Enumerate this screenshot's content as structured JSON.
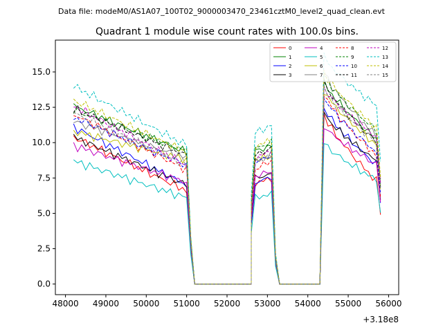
{
  "header": {
    "data_file": "Data file: modeM0/AS1A07_100T02_9000003470_23461cztM0_level2_quad_clean.evt"
  },
  "chart_data": {
    "type": "line",
    "title": "Quadrant 1 module wise count rates with 100.0s bins.",
    "xlabel": "",
    "ylabel": "",
    "x_offset_label": "+3.18e8",
    "xlim": [
      47750,
      56250
    ],
    "ylim": [
      -0.75,
      17.25
    ],
    "x_ticks": [
      48000,
      49000,
      50000,
      51000,
      52000,
      53000,
      54000,
      55000,
      56000
    ],
    "x_tick_labels": [
      "48000",
      "49000",
      "50000",
      "51000",
      "52000",
      "53000",
      "54000",
      "55000",
      "56000"
    ],
    "y_ticks": [
      0,
      2.5,
      5,
      7.5,
      10,
      12.5,
      15
    ],
    "y_tick_labels": [
      "0.0",
      "2.5",
      "5.0",
      "7.5",
      "10.0",
      "12.5",
      "15.0"
    ],
    "legend_position": "top-right",
    "segments": [
      {
        "start": 48200,
        "end": 51000,
        "kind": "active"
      },
      {
        "start": 51000,
        "end": 51200,
        "kind": "drop"
      },
      {
        "start": 51200,
        "end": 52600,
        "kind": "zero"
      },
      {
        "start": 52600,
        "end": 53100,
        "kind": "active"
      },
      {
        "start": 53100,
        "end": 53300,
        "kind": "drop"
      },
      {
        "start": 53300,
        "end": 54300,
        "kind": "zero"
      },
      {
        "start": 54300,
        "end": 55800,
        "kind": "active"
      }
    ],
    "series": [
      {
        "name": "0",
        "color": "#ff0000",
        "dashed": false,
        "seg1": [
          10.4,
          6.6
        ],
        "seg2": [
          7.0,
          7.5
        ],
        "seg3": [
          12.0,
          7.0
        ]
      },
      {
        "name": "1",
        "color": "#008000",
        "dashed": false,
        "seg1": [
          12.6,
          9.3
        ],
        "seg2": [
          9.3,
          9.8
        ],
        "seg3": [
          14.3,
          10.0
        ]
      },
      {
        "name": "2",
        "color": "#0000ff",
        "dashed": false,
        "seg1": [
          11.1,
          7.0
        ],
        "seg2": [
          7.0,
          7.6
        ],
        "seg3": [
          12.5,
          8.2
        ]
      },
      {
        "name": "3",
        "color": "#000000",
        "dashed": false,
        "seg1": [
          10.4,
          7.0
        ],
        "seg2": [
          7.4,
          7.8
        ],
        "seg3": [
          12.1,
          8.5
        ]
      },
      {
        "name": "4",
        "color": "#bf00bf",
        "dashed": false,
        "seg1": [
          9.8,
          7.2
        ],
        "seg2": [
          7.5,
          8.0
        ],
        "seg3": [
          11.2,
          8.3
        ]
      },
      {
        "name": "5",
        "color": "#00bfbf",
        "dashed": false,
        "seg1": [
          8.7,
          6.1
        ],
        "seg2": [
          6.0,
          6.4
        ],
        "seg3": [
          10.0,
          7.2
        ]
      },
      {
        "name": "6",
        "color": "#bfbf00",
        "dashed": false,
        "seg1": [
          10.8,
          8.8
        ],
        "seg2": [
          8.8,
          9.0
        ],
        "seg3": [
          13.7,
          9.6
        ]
      },
      {
        "name": "7",
        "color": "#808080",
        "dashed": false,
        "seg1": [
          11.5,
          8.9
        ],
        "seg2": [
          8.5,
          9.2
        ],
        "seg3": [
          15.0,
          10.2
        ]
      },
      {
        "name": "8",
        "color": "#ff0000",
        "dashed": true,
        "seg1": [
          12.0,
          8.1
        ],
        "seg2": [
          8.0,
          8.7
        ],
        "seg3": [
          13.5,
          8.8
        ]
      },
      {
        "name": "9",
        "color": "#008000",
        "dashed": true,
        "seg1": [
          12.3,
          9.4
        ],
        "seg2": [
          9.5,
          10.0
        ],
        "seg3": [
          14.8,
          10.6
        ]
      },
      {
        "name": "10",
        "color": "#0000ff",
        "dashed": true,
        "seg1": [
          11.8,
          8.4
        ],
        "seg2": [
          8.6,
          9.0
        ],
        "seg3": [
          13.2,
          9.1
        ]
      },
      {
        "name": "11",
        "color": "#000000",
        "dashed": true,
        "seg1": [
          12.4,
          9.1
        ],
        "seg2": [
          9.0,
          9.6
        ],
        "seg3": [
          14.2,
          9.8
        ]
      },
      {
        "name": "12",
        "color": "#bf00bf",
        "dashed": true,
        "seg1": [
          12.6,
          8.4
        ],
        "seg2": [
          8.8,
          9.4
        ],
        "seg3": [
          13.9,
          10.2
        ]
      },
      {
        "name": "13",
        "color": "#00bfbf",
        "dashed": true,
        "seg1": [
          14.0,
          9.8
        ],
        "seg2": [
          10.6,
          11.2
        ],
        "seg3": [
          16.1,
          12.4
        ]
      },
      {
        "name": "14",
        "color": "#bfbf00",
        "dashed": true,
        "seg1": [
          13.0,
          9.3
        ],
        "seg2": [
          9.6,
          10.2
        ],
        "seg3": [
          15.0,
          10.8
        ]
      },
      {
        "name": "15",
        "color": "#808080",
        "dashed": true,
        "seg1": [
          12.1,
          8.4
        ],
        "seg2": [
          8.6,
          9.1
        ],
        "seg3": [
          13.8,
          9.8
        ]
      }
    ]
  }
}
